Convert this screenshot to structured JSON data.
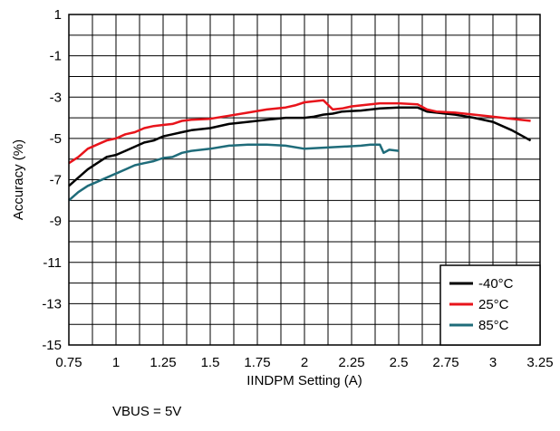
{
  "chart_data": {
    "type": "line",
    "title": "",
    "xlabel": "IINDPM Setting (A)",
    "ylabel": "Accuracy (%)",
    "xlim": [
      0.75,
      3.25
    ],
    "ylim": [
      -15,
      1
    ],
    "xticks": [
      "0.75",
      "1",
      "1.25",
      "1.5",
      "1.75",
      "2",
      "2.25",
      "2.5",
      "2.75",
      "3",
      "3.25"
    ],
    "xtick_values": [
      0.75,
      1,
      1.25,
      1.5,
      1.75,
      2,
      2.25,
      2.5,
      2.75,
      3,
      3.25
    ],
    "yticks": [
      "1",
      "-1",
      "-3",
      "-5",
      "-7",
      "-9",
      "-11",
      "-13",
      "-15"
    ],
    "ytick_values": [
      1,
      -1,
      -3,
      -5,
      -7,
      -9,
      -11,
      -13,
      -15
    ],
    "grid": true,
    "grid_x_step": 0.125,
    "grid_y_step": 1,
    "legend_position": "bottom-right",
    "series": [
      {
        "name": "-40°C",
        "color": "#000000",
        "x": [
          0.75,
          0.8,
          0.85,
          0.9,
          0.95,
          1.0,
          1.05,
          1.1,
          1.15,
          1.2,
          1.25,
          1.3,
          1.35,
          1.4,
          1.5,
          1.6,
          1.7,
          1.8,
          1.9,
          1.95,
          2.0,
          2.05,
          2.1,
          2.15,
          2.2,
          2.3,
          2.4,
          2.5,
          2.6,
          2.65,
          2.7,
          2.8,
          2.9,
          3.0,
          3.1,
          3.2
        ],
        "y": [
          -7.3,
          -6.9,
          -6.5,
          -6.2,
          -5.9,
          -5.8,
          -5.6,
          -5.4,
          -5.2,
          -5.1,
          -4.9,
          -4.8,
          -4.7,
          -4.6,
          -4.5,
          -4.3,
          -4.2,
          -4.1,
          -4.0,
          -4.0,
          -4.0,
          -3.95,
          -3.85,
          -3.8,
          -3.7,
          -3.65,
          -3.55,
          -3.5,
          -3.5,
          -3.7,
          -3.75,
          -3.85,
          -4.0,
          -4.2,
          -4.6,
          -5.1
        ]
      },
      {
        "name": "25°C",
        "color": "#e8141b",
        "x": [
          0.75,
          0.8,
          0.85,
          0.9,
          0.95,
          1.0,
          1.05,
          1.1,
          1.15,
          1.2,
          1.25,
          1.3,
          1.35,
          1.4,
          1.5,
          1.6,
          1.7,
          1.8,
          1.9,
          1.95,
          2.0,
          2.1,
          2.15,
          2.2,
          2.25,
          2.3,
          2.35,
          2.4,
          2.5,
          2.6,
          2.65,
          2.7,
          2.8,
          2.9,
          3.0,
          3.1,
          3.2
        ],
        "y": [
          -6.2,
          -5.9,
          -5.5,
          -5.3,
          -5.1,
          -5.0,
          -4.8,
          -4.7,
          -4.5,
          -4.4,
          -4.35,
          -4.3,
          -4.15,
          -4.1,
          -4.05,
          -3.9,
          -3.75,
          -3.6,
          -3.5,
          -3.4,
          -3.25,
          -3.15,
          -3.6,
          -3.55,
          -3.45,
          -3.4,
          -3.35,
          -3.3,
          -3.3,
          -3.35,
          -3.6,
          -3.7,
          -3.75,
          -3.85,
          -3.95,
          -4.05,
          -4.15
        ]
      },
      {
        "name": "85°C",
        "color": "#1f6c7a",
        "x": [
          0.75,
          0.8,
          0.85,
          0.9,
          0.95,
          1.0,
          1.05,
          1.1,
          1.15,
          1.2,
          1.25,
          1.3,
          1.35,
          1.4,
          1.5,
          1.6,
          1.7,
          1.8,
          1.9,
          2.0,
          2.1,
          2.2,
          2.3,
          2.35,
          2.4,
          2.42,
          2.45,
          2.5
        ],
        "y": [
          -8.0,
          -7.6,
          -7.3,
          -7.1,
          -6.9,
          -6.7,
          -6.5,
          -6.3,
          -6.2,
          -6.1,
          -5.95,
          -5.9,
          -5.7,
          -5.6,
          -5.5,
          -5.35,
          -5.3,
          -5.3,
          -5.35,
          -5.5,
          -5.45,
          -5.4,
          -5.35,
          -5.3,
          -5.3,
          -5.7,
          -5.55,
          -5.6
        ]
      }
    ]
  },
  "note": "VBUS = 5V"
}
